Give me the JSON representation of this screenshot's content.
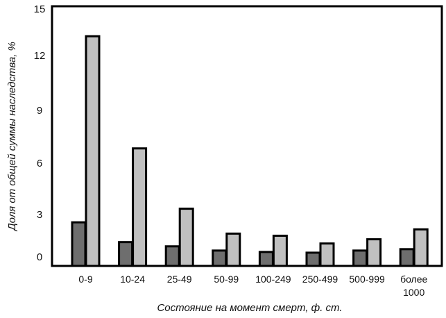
{
  "chart_data": {
    "type": "bar",
    "categories": [
      "0-9",
      "10-24",
      "25-49",
      "50-99",
      "100-249",
      "250-499",
      "500-999",
      "более\n1000"
    ],
    "series": [
      {
        "color": "#6e6e6e",
        "values": [
          2.4,
          1.0,
          0.7,
          0.4,
          0.3,
          0.25,
          0.4,
          0.5
        ]
      },
      {
        "color": "#c0c0c0",
        "values": [
          13.2,
          6.8,
          3.3,
          1.6,
          1.45,
          0.9,
          1.2,
          1.9
        ]
      }
    ],
    "xlabel": "Состояние на момент смерт, ф. ст.",
    "ylabel": "Доля от общей суммы наследства, %",
    "ylim": [
      0,
      15
    ],
    "yticks": [
      0,
      3,
      6,
      9,
      12,
      15
    ],
    "grid": false,
    "legend": "none"
  }
}
